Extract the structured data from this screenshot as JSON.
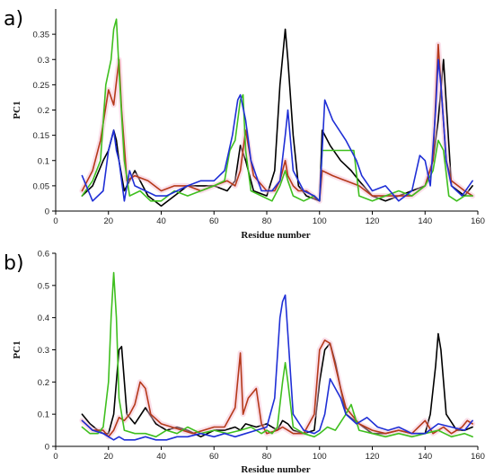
{
  "chart_data": [
    {
      "type": "line",
      "panel_label": "a)",
      "xlabel": "Residue number",
      "ylabel": "PC1",
      "xlim": [
        0,
        160
      ],
      "ylim": [
        0,
        0.4
      ],
      "xticks": [
        0,
        20,
        40,
        60,
        80,
        100,
        120,
        140,
        160
      ],
      "yticks": [
        0,
        0.05,
        0.1,
        0.15,
        0.2,
        0.25,
        0.3,
        0.35
      ],
      "ytick_labels": [
        "0",
        "0.05",
        "0.1",
        "0.15",
        "0.2",
        "0.25",
        "0.3",
        "0.35"
      ],
      "grid": false,
      "series": [
        {
          "color": "#000000",
          "x": [
            10,
            14,
            18,
            20,
            22,
            23,
            24,
            26,
            30,
            35,
            40,
            45,
            50,
            55,
            60,
            65,
            68,
            70,
            72,
            75,
            80,
            83,
            85,
            87,
            88,
            90,
            92,
            95,
            100,
            101,
            104,
            108,
            112,
            115,
            120,
            125,
            130,
            135,
            140,
            143,
            145,
            147,
            150,
            155,
            158
          ],
          "y": [
            0.03,
            0.05,
            0.1,
            0.12,
            0.16,
            0.14,
            0.1,
            0.04,
            0.08,
            0.03,
            0.01,
            0.03,
            0.05,
            0.05,
            0.05,
            0.04,
            0.06,
            0.13,
            0.1,
            0.04,
            0.03,
            0.08,
            0.25,
            0.36,
            0.3,
            0.15,
            0.05,
            0.03,
            0.02,
            0.16,
            0.13,
            0.1,
            0.08,
            0.06,
            0.03,
            0.02,
            0.03,
            0.04,
            0.05,
            0.1,
            0.18,
            0.3,
            0.05,
            0.03,
            0.05
          ]
        },
        {
          "color": "#b5391a",
          "x": [
            10,
            14,
            17,
            20,
            22,
            24,
            25,
            27,
            30,
            35,
            40,
            45,
            50,
            55,
            60,
            65,
            68,
            70,
            72,
            75,
            80,
            83,
            85,
            87,
            88,
            90,
            92,
            95,
            100,
            101,
            105,
            110,
            115,
            120,
            125,
            130,
            135,
            140,
            143,
            145,
            146,
            148,
            150,
            155,
            158
          ],
          "y": [
            0.04,
            0.08,
            0.14,
            0.24,
            0.21,
            0.3,
            0.2,
            0.06,
            0.07,
            0.06,
            0.04,
            0.05,
            0.05,
            0.04,
            0.05,
            0.06,
            0.05,
            0.08,
            0.16,
            0.07,
            0.04,
            0.04,
            0.06,
            0.1,
            0.07,
            0.05,
            0.04,
            0.04,
            0.02,
            0.08,
            0.07,
            0.06,
            0.05,
            0.03,
            0.03,
            0.03,
            0.03,
            0.05,
            0.1,
            0.33,
            0.25,
            0.1,
            0.06,
            0.04,
            0.03
          ]
        },
        {
          "color": "#3fbf1f",
          "x": [
            10,
            14,
            17,
            19,
            21,
            22,
            23,
            24,
            26,
            28,
            32,
            36,
            40,
            45,
            50,
            55,
            60,
            64,
            66,
            68,
            70,
            71,
            72,
            74,
            78,
            82,
            85,
            87,
            88,
            90,
            94,
            98,
            100,
            101,
            105,
            110,
            113,
            115,
            120,
            125,
            130,
            135,
            140,
            143,
            145,
            147,
            149,
            152,
            155,
            158
          ],
          "y": [
            0.03,
            0.06,
            0.1,
            0.25,
            0.3,
            0.36,
            0.38,
            0.28,
            0.1,
            0.03,
            0.04,
            0.02,
            0.02,
            0.04,
            0.03,
            0.04,
            0.05,
            0.06,
            0.12,
            0.14,
            0.22,
            0.23,
            0.12,
            0.04,
            0.03,
            0.02,
            0.05,
            0.08,
            0.06,
            0.03,
            0.02,
            0.03,
            0.02,
            0.12,
            0.12,
            0.12,
            0.12,
            0.03,
            0.02,
            0.03,
            0.04,
            0.03,
            0.05,
            0.08,
            0.14,
            0.12,
            0.03,
            0.02,
            0.03,
            0.03
          ]
        },
        {
          "color": "#1f2fd6",
          "x": [
            10,
            14,
            18,
            20,
            22,
            23,
            24,
            26,
            28,
            30,
            34,
            38,
            42,
            46,
            50,
            55,
            60,
            64,
            67,
            69,
            70,
            72,
            74,
            78,
            82,
            85,
            87,
            88,
            90,
            94,
            98,
            100,
            102,
            105,
            110,
            114,
            116,
            120,
            125,
            130,
            135,
            138,
            140,
            142,
            144,
            145,
            146,
            148,
            150,
            154,
            158
          ],
          "y": [
            0.07,
            0.02,
            0.04,
            0.12,
            0.16,
            0.12,
            0.1,
            0.02,
            0.08,
            0.05,
            0.04,
            0.03,
            0.03,
            0.04,
            0.05,
            0.06,
            0.06,
            0.08,
            0.15,
            0.22,
            0.23,
            0.18,
            0.1,
            0.04,
            0.04,
            0.06,
            0.15,
            0.2,
            0.08,
            0.04,
            0.03,
            0.02,
            0.22,
            0.18,
            0.14,
            0.1,
            0.07,
            0.04,
            0.05,
            0.02,
            0.04,
            0.11,
            0.1,
            0.05,
            0.2,
            0.3,
            0.25,
            0.1,
            0.05,
            0.03,
            0.06
          ]
        }
      ]
    },
    {
      "type": "line",
      "panel_label": "b)",
      "xlabel": "Residue number",
      "ylabel": "PC1",
      "xlim": [
        0,
        160
      ],
      "ylim": [
        0,
        0.6
      ],
      "xticks": [
        0,
        20,
        40,
        60,
        80,
        100,
        120,
        140,
        160
      ],
      "yticks": [
        0,
        0.1,
        0.2,
        0.3,
        0.4,
        0.5,
        0.6
      ],
      "ytick_labels": [
        "0",
        "0.1",
        "0.2",
        "0.3",
        "0.4",
        "0.5",
        "0.6"
      ],
      "grid": false,
      "series": [
        {
          "color": "#000000",
          "x": [
            10,
            13,
            16,
            18,
            20,
            22,
            24,
            25,
            27,
            30,
            34,
            38,
            42,
            46,
            50,
            55,
            60,
            64,
            68,
            70,
            72,
            76,
            80,
            84,
            86,
            88,
            90,
            94,
            98,
            100,
            102,
            104,
            106,
            110,
            115,
            120,
            125,
            130,
            135,
            140,
            142,
            144,
            145,
            146,
            148,
            152,
            155,
            158
          ],
          "y": [
            0.1,
            0.07,
            0.05,
            0.04,
            0.04,
            0.1,
            0.3,
            0.31,
            0.1,
            0.07,
            0.12,
            0.07,
            0.05,
            0.06,
            0.05,
            0.03,
            0.05,
            0.05,
            0.06,
            0.05,
            0.07,
            0.06,
            0.07,
            0.05,
            0.08,
            0.07,
            0.05,
            0.04,
            0.05,
            0.2,
            0.3,
            0.32,
            0.26,
            0.1,
            0.07,
            0.04,
            0.04,
            0.05,
            0.04,
            0.04,
            0.1,
            0.25,
            0.35,
            0.3,
            0.1,
            0.05,
            0.05,
            0.06
          ]
        },
        {
          "color": "#b5391a",
          "x": [
            10,
            14,
            18,
            20,
            22,
            24,
            26,
            28,
            30,
            32,
            34,
            36,
            40,
            44,
            48,
            52,
            56,
            60,
            64,
            68,
            70,
            71,
            73,
            76,
            78,
            80,
            84,
            86,
            88,
            90,
            94,
            98,
            100,
            102,
            104,
            106,
            108,
            110,
            115,
            120,
            125,
            130,
            135,
            140,
            143,
            145,
            147,
            150,
            154,
            156,
            158
          ],
          "y": [
            0.08,
            0.05,
            0.05,
            0.03,
            0.05,
            0.09,
            0.08,
            0.1,
            0.13,
            0.2,
            0.18,
            0.1,
            0.07,
            0.06,
            0.05,
            0.04,
            0.05,
            0.06,
            0.06,
            0.12,
            0.29,
            0.1,
            0.15,
            0.18,
            0.07,
            0.04,
            0.05,
            0.06,
            0.05,
            0.04,
            0.04,
            0.1,
            0.3,
            0.33,
            0.32,
            0.25,
            0.18,
            0.12,
            0.07,
            0.05,
            0.04,
            0.05,
            0.04,
            0.08,
            0.04,
            0.05,
            0.06,
            0.04,
            0.06,
            0.08,
            0.07
          ]
        },
        {
          "color": "#3fbf1f",
          "x": [
            10,
            13,
            16,
            18,
            20,
            21,
            22,
            23,
            24,
            26,
            30,
            34,
            38,
            42,
            46,
            50,
            55,
            60,
            65,
            70,
            74,
            78,
            80,
            82,
            84,
            86,
            87,
            88,
            90,
            94,
            98,
            100,
            103,
            106,
            110,
            112,
            115,
            120,
            125,
            130,
            135,
            140,
            145,
            150,
            155,
            158
          ],
          "y": [
            0.06,
            0.04,
            0.04,
            0.06,
            0.2,
            0.4,
            0.54,
            0.4,
            0.15,
            0.05,
            0.04,
            0.04,
            0.03,
            0.05,
            0.04,
            0.06,
            0.04,
            0.05,
            0.04,
            0.05,
            0.06,
            0.04,
            0.05,
            0.04,
            0.06,
            0.2,
            0.26,
            0.2,
            0.06,
            0.04,
            0.03,
            0.04,
            0.06,
            0.05,
            0.1,
            0.13,
            0.05,
            0.04,
            0.03,
            0.04,
            0.03,
            0.04,
            0.05,
            0.03,
            0.04,
            0.03
          ]
        },
        {
          "color": "#1f2fd6",
          "x": [
            10,
            14,
            18,
            20,
            22,
            24,
            26,
            30,
            34,
            38,
            42,
            46,
            50,
            55,
            60,
            64,
            68,
            72,
            76,
            80,
            83,
            85,
            86,
            87,
            88,
            90,
            94,
            98,
            100,
            102,
            104,
            106,
            108,
            110,
            114,
            118,
            122,
            126,
            130,
            135,
            140,
            145,
            150,
            155,
            158
          ],
          "y": [
            0.08,
            0.05,
            0.04,
            0.03,
            0.02,
            0.03,
            0.02,
            0.02,
            0.03,
            0.02,
            0.02,
            0.03,
            0.03,
            0.04,
            0.03,
            0.04,
            0.03,
            0.04,
            0.05,
            0.06,
            0.15,
            0.4,
            0.45,
            0.47,
            0.35,
            0.1,
            0.05,
            0.04,
            0.05,
            0.1,
            0.21,
            0.18,
            0.15,
            0.1,
            0.07,
            0.09,
            0.06,
            0.05,
            0.06,
            0.04,
            0.04,
            0.07,
            0.06,
            0.05,
            0.08
          ]
        }
      ]
    }
  ]
}
